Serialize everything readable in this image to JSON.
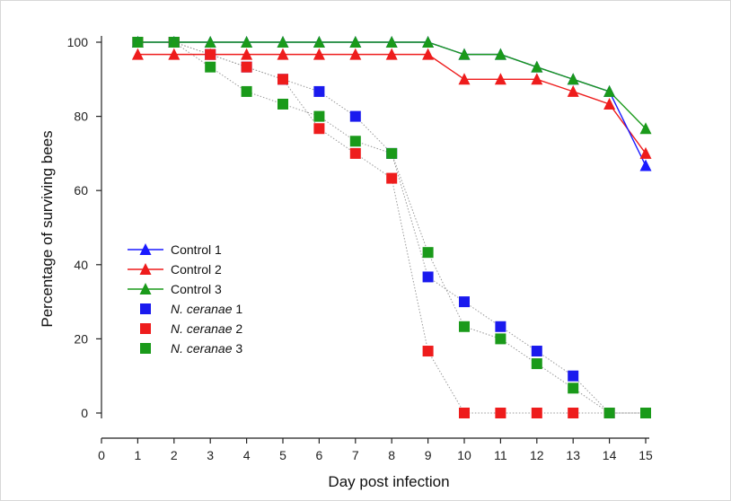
{
  "chart_data": {
    "type": "line",
    "xlabel": "Day post infection",
    "ylabel": "Percentage of surviving bees",
    "xlim": [
      0,
      15
    ],
    "ylim": [
      0,
      100
    ],
    "x_ticks": [
      "0",
      "1",
      "2",
      "3",
      "4",
      "5",
      "6",
      "7",
      "8",
      "9",
      "10",
      "11",
      "12",
      "13",
      "14",
      "15"
    ],
    "y_ticks": [
      "0",
      "20",
      "40",
      "60",
      "80",
      "100"
    ],
    "grid": false,
    "legend_position": "center-left",
    "series": [
      {
        "name": "Control 1",
        "name_italic": "",
        "marker": "triangle",
        "line": "solid",
        "color": "#1a1aff",
        "x": [
          1,
          2,
          3,
          4,
          5,
          6,
          7,
          8,
          9,
          10,
          11,
          12,
          13,
          14,
          15
        ],
        "y": [
          100,
          100,
          100,
          100,
          100,
          100,
          100,
          100,
          100,
          96.7,
          96.7,
          93.3,
          90,
          86.7,
          66.7
        ]
      },
      {
        "name": "Control 2",
        "name_italic": "",
        "marker": "triangle",
        "line": "solid",
        "color": "#ee1c1c",
        "x": [
          1,
          2,
          3,
          4,
          5,
          6,
          7,
          8,
          9,
          10,
          11,
          12,
          13,
          14,
          15
        ],
        "y": [
          96.7,
          96.7,
          96.7,
          96.7,
          96.7,
          96.7,
          96.7,
          96.7,
          96.7,
          90,
          90,
          90,
          86.7,
          83.3,
          70
        ]
      },
      {
        "name": "Control 3",
        "name_italic": "",
        "marker": "triangle",
        "line": "solid",
        "color": "#1a9a1a",
        "x": [
          1,
          2,
          3,
          4,
          5,
          6,
          7,
          8,
          9,
          10,
          11,
          12,
          13,
          14,
          15
        ],
        "y": [
          100,
          100,
          100,
          100,
          100,
          100,
          100,
          100,
          100,
          96.7,
          96.7,
          93.3,
          90,
          86.7,
          76.7
        ]
      },
      {
        "name": "1",
        "name_italic": "N. ceranae",
        "marker": "square",
        "line": "dotted",
        "color": "#1a1aee",
        "x": [
          1,
          2,
          3,
          4,
          5,
          6,
          7,
          8,
          9,
          10,
          11,
          12,
          13,
          14,
          15
        ],
        "y": [
          100,
          100,
          96.7,
          93.3,
          90,
          86.7,
          80,
          70,
          36.7,
          30,
          23.3,
          16.7,
          10,
          0,
          0
        ]
      },
      {
        "name": "2",
        "name_italic": "N. ceranae",
        "marker": "square",
        "line": "dotted",
        "color": "#ee1c1c",
        "x": [
          1,
          2,
          3,
          4,
          5,
          6,
          7,
          8,
          9,
          10,
          11,
          12,
          13,
          14,
          15
        ],
        "y": [
          100,
          100,
          96.7,
          93.3,
          90,
          76.7,
          70,
          63.3,
          16.7,
          0,
          0,
          0,
          0,
          0,
          0
        ]
      },
      {
        "name": "3",
        "name_italic": "N. ceranae",
        "marker": "square",
        "line": "dotted",
        "color": "#1a9a1a",
        "x": [
          1,
          2,
          3,
          4,
          5,
          6,
          7,
          8,
          9,
          10,
          11,
          12,
          13,
          14,
          15
        ],
        "y": [
          100,
          100,
          93.3,
          86.7,
          83.3,
          80,
          73.3,
          70,
          43.3,
          23.3,
          20,
          13.3,
          6.7,
          0,
          0
        ]
      }
    ]
  }
}
